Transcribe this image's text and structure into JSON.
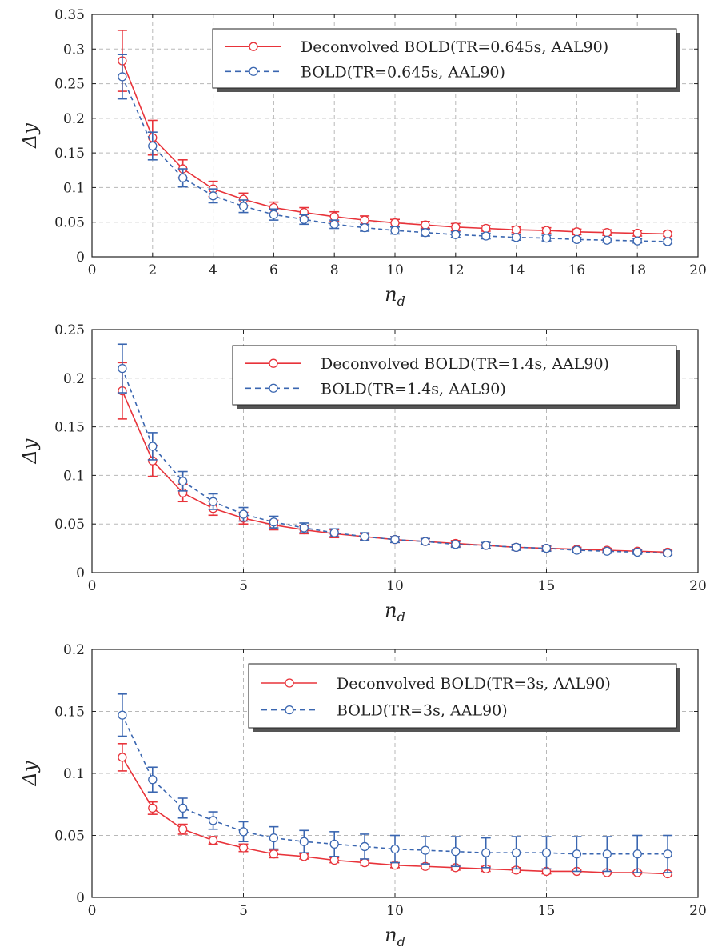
{
  "chart_data": [
    {
      "type": "line",
      "xlabel": "n",
      "xlabel_sub": "d",
      "ylabel": "Δy",
      "xlim": [
        0,
        20
      ],
      "ylim": [
        0,
        0.35
      ],
      "xticks": [
        "0",
        "2",
        "4",
        "6",
        "8",
        "10",
        "12",
        "14",
        "16",
        "18",
        "20"
      ],
      "xtick_values": [
        0,
        2,
        4,
        6,
        8,
        10,
        12,
        14,
        16,
        18,
        20
      ],
      "yticks": [
        "0",
        "0.05",
        "0.1",
        "0.15",
        "0.2",
        "0.25",
        "0.3",
        "0.35"
      ],
      "ytick_values": [
        0,
        0.05,
        0.1,
        0.15,
        0.2,
        0.25,
        0.3,
        0.35
      ],
      "grid": true,
      "legend_position": "top-right",
      "x": [
        1,
        2,
        3,
        4,
        5,
        6,
        7,
        8,
        9,
        10,
        11,
        12,
        13,
        14,
        15,
        16,
        17,
        18,
        19
      ],
      "series": [
        {
          "name": "Deconvolved BOLD(TR=0.645s, AAL90)",
          "color": "#e8333a",
          "dash": "solid",
          "values": [
            0.283,
            0.172,
            0.127,
            0.098,
            0.083,
            0.071,
            0.064,
            0.058,
            0.053,
            0.049,
            0.046,
            0.043,
            0.041,
            0.039,
            0.038,
            0.036,
            0.035,
            0.034,
            0.033
          ],
          "errors": [
            0.044,
            0.025,
            0.013,
            0.011,
            0.009,
            0.008,
            0.007,
            0.007,
            0.006,
            0.005,
            0.005,
            0.005,
            0.004,
            0.004,
            0.004,
            0.004,
            0.004,
            0.004,
            0.003
          ]
        },
        {
          "name": "BOLD(TR=0.645s, AAL90)",
          "color": "#3a66b0",
          "dash": "dashed",
          "values": [
            0.26,
            0.16,
            0.114,
            0.088,
            0.073,
            0.061,
            0.054,
            0.047,
            0.042,
            0.038,
            0.035,
            0.032,
            0.03,
            0.028,
            0.027,
            0.025,
            0.024,
            0.023,
            0.022
          ],
          "errors": [
            0.032,
            0.02,
            0.013,
            0.01,
            0.009,
            0.008,
            0.007,
            0.006,
            0.005,
            0.005,
            0.005,
            0.004,
            0.004,
            0.004,
            0.004,
            0.003,
            0.003,
            0.003,
            0.003
          ]
        }
      ]
    },
    {
      "type": "line",
      "xlabel": "n",
      "xlabel_sub": "d",
      "ylabel": "Δy",
      "xlim": [
        0,
        20
      ],
      "ylim": [
        0,
        0.25
      ],
      "xticks": [
        "0",
        "5",
        "10",
        "15",
        "20"
      ],
      "xtick_values": [
        0,
        5,
        10,
        15,
        20
      ],
      "yticks": [
        "0",
        "0.05",
        "0.1",
        "0.15",
        "0.2",
        "0.25"
      ],
      "ytick_values": [
        0,
        0.05,
        0.1,
        0.15,
        0.2,
        0.25
      ],
      "grid": true,
      "legend_position": "top-right",
      "x": [
        1,
        2,
        3,
        4,
        5,
        6,
        7,
        8,
        9,
        10,
        11,
        12,
        13,
        14,
        15,
        16,
        17,
        18,
        19
      ],
      "series": [
        {
          "name": "Deconvolved BOLD(TR=1.4s, AAL90)",
          "color": "#e8333a",
          "dash": "solid",
          "values": [
            0.187,
            0.115,
            0.082,
            0.066,
            0.056,
            0.049,
            0.044,
            0.04,
            0.037,
            0.034,
            0.032,
            0.03,
            0.028,
            0.026,
            0.025,
            0.024,
            0.023,
            0.022,
            0.021
          ],
          "errors": [
            0.029,
            0.016,
            0.009,
            0.007,
            0.006,
            0.005,
            0.004,
            0.004,
            0.003,
            0.003,
            0.003,
            0.003,
            0.003,
            0.002,
            0.002,
            0.002,
            0.002,
            0.002,
            0.002
          ]
        },
        {
          "name": "BOLD(TR=1.4s, AAL90)",
          "color": "#3a66b0",
          "dash": "dashed",
          "values": [
            0.21,
            0.13,
            0.094,
            0.073,
            0.06,
            0.052,
            0.046,
            0.041,
            0.037,
            0.034,
            0.032,
            0.029,
            0.028,
            0.026,
            0.025,
            0.023,
            0.022,
            0.021,
            0.02
          ],
          "errors": [
            0.025,
            0.014,
            0.01,
            0.008,
            0.007,
            0.006,
            0.005,
            0.004,
            0.004,
            0.003,
            0.003,
            0.003,
            0.003,
            0.003,
            0.003,
            0.002,
            0.002,
            0.002,
            0.002
          ]
        }
      ]
    },
    {
      "type": "line",
      "xlabel": "n",
      "xlabel_sub": "d",
      "ylabel": "Δy",
      "xlim": [
        0,
        20
      ],
      "ylim": [
        0,
        0.2
      ],
      "xticks": [
        "0",
        "5",
        "10",
        "15",
        "20"
      ],
      "xtick_values": [
        0,
        5,
        10,
        15,
        20
      ],
      "yticks": [
        "0",
        "0.05",
        "0.1",
        "0.15",
        "0.2"
      ],
      "ytick_values": [
        0,
        0.05,
        0.1,
        0.15,
        0.2
      ],
      "grid": true,
      "legend_position": "top-right",
      "x": [
        1,
        2,
        3,
        4,
        5,
        6,
        7,
        8,
        9,
        10,
        11,
        12,
        13,
        14,
        15,
        16,
        17,
        18,
        19
      ],
      "series": [
        {
          "name": "Deconvolved BOLD(TR=3s, AAL90)",
          "color": "#e8333a",
          "dash": "solid",
          "values": [
            0.113,
            0.072,
            0.055,
            0.046,
            0.04,
            0.035,
            0.033,
            0.03,
            0.028,
            0.026,
            0.025,
            0.024,
            0.023,
            0.022,
            0.021,
            0.021,
            0.02,
            0.02,
            0.019
          ],
          "errors": [
            0.011,
            0.005,
            0.004,
            0.003,
            0.003,
            0.003,
            0.002,
            0.002,
            0.002,
            0.002,
            0.002,
            0.002,
            0.002,
            0.002,
            0.002,
            0.001,
            0.001,
            0.001,
            0.001
          ]
        },
        {
          "name": "BOLD(TR=3s, AAL90)",
          "color": "#3a66b0",
          "dash": "dashed",
          "values": [
            0.147,
            0.095,
            0.072,
            0.062,
            0.053,
            0.048,
            0.045,
            0.043,
            0.041,
            0.039,
            0.038,
            0.037,
            0.036,
            0.036,
            0.036,
            0.035,
            0.035,
            0.035,
            0.035
          ],
          "errors": [
            0.017,
            0.01,
            0.008,
            0.007,
            0.008,
            0.009,
            0.009,
            0.01,
            0.01,
            0.011,
            0.011,
            0.012,
            0.012,
            0.013,
            0.013,
            0.014,
            0.014,
            0.015,
            0.015
          ]
        }
      ]
    }
  ]
}
